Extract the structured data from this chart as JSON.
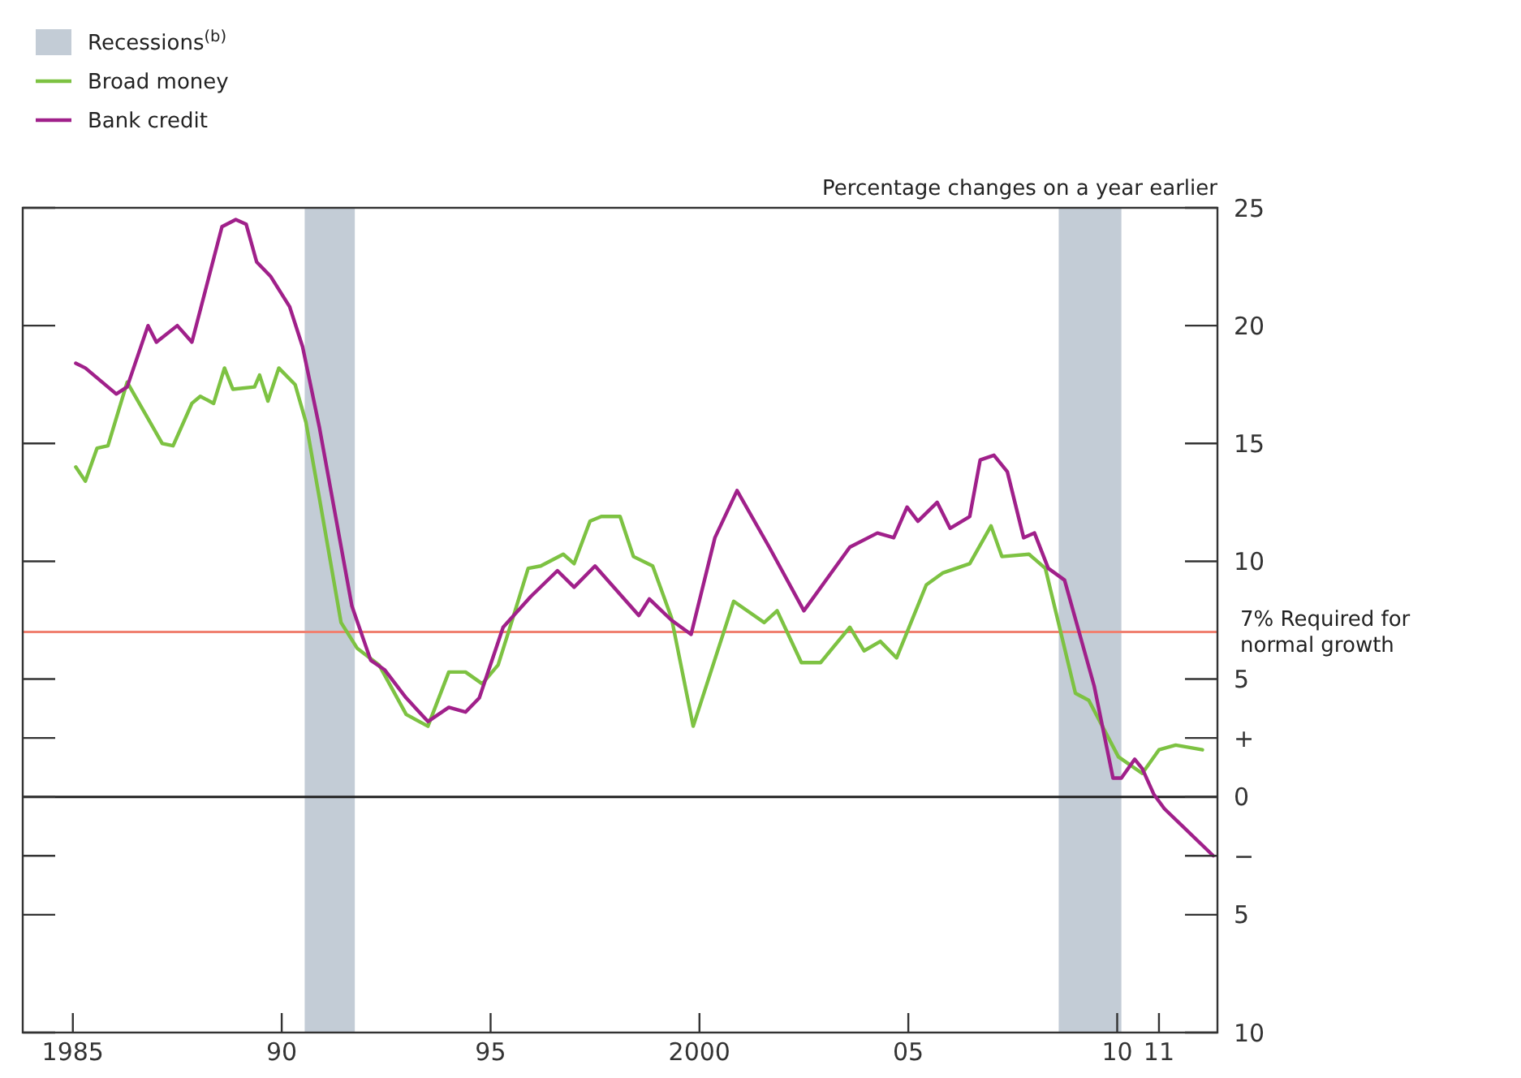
{
  "chart_data": {
    "type": "line",
    "ylabel": "Percentage changes on a year earlier",
    "xlim": [
      1983.8,
      2012.4
    ],
    "ylim": [
      -10,
      25
    ],
    "xticks": [
      1985,
      {
        "value": 1990,
        "label": "90"
      },
      {
        "value": 1995,
        "label": "95"
      },
      2000,
      {
        "value": 2005,
        "label": "05"
      },
      {
        "value": 2010,
        "label": "10"
      },
      {
        "value": 2011,
        "label": "11"
      }
    ],
    "yticks": [
      25,
      20,
      15,
      10,
      5,
      {
        "value": 2.5,
        "label": "+"
      },
      0,
      {
        "value": -2.5,
        "label": "−"
      },
      {
        "value": -5,
        "label": "5"
      },
      {
        "value": -10,
        "label": "10"
      }
    ],
    "grid": false,
    "legend": "top left",
    "line_style": "solid",
    "marker": "none",
    "series": [
      {
        "name": "Broad money",
        "color": "#7dc242",
        "x": [
          1985.07,
          1985.3,
          1985.58,
          1985.84,
          1986.3,
          1987.14,
          1987.4,
          1987.85,
          1988.05,
          1988.37,
          1988.63,
          1988.83,
          1989.35,
          1989.47,
          1989.67,
          1989.93,
          1990.32,
          1990.58,
          1990.9,
          1991.42,
          1991.81,
          1992.33,
          1992.98,
          1993.5,
          1994.0,
          1994.4,
          1994.8,
          1995.18,
          1995.5,
          1995.9,
          1996.2,
          1996.74,
          1997.0,
          1997.38,
          1997.65,
          1998.1,
          1998.42,
          1998.88,
          1999.33,
          1999.85,
          2000.82,
          2001.55,
          2001.86,
          2002.44,
          2002.9,
          2003.6,
          2003.94,
          2004.33,
          2004.72,
          2005.43,
          2005.82,
          2006.47,
          2006.98,
          2007.24,
          2007.89,
          2008.28,
          2009.0,
          2009.32,
          2010.03,
          2010.6,
          2011.0,
          2011.4,
          2012.04
        ],
        "values": [
          14.0,
          13.4,
          14.8,
          14.9,
          17.6,
          15.0,
          14.9,
          16.7,
          17.0,
          16.7,
          18.2,
          17.3,
          17.4,
          17.9,
          16.8,
          18.2,
          17.5,
          15.9,
          12.7,
          7.4,
          6.3,
          5.6,
          3.5,
          3.0,
          5.3,
          5.3,
          4.8,
          5.6,
          7.4,
          9.7,
          9.8,
          10.3,
          9.9,
          11.7,
          11.9,
          11.9,
          10.2,
          9.8,
          7.6,
          3.0,
          8.3,
          7.4,
          7.9,
          5.7,
          5.7,
          7.2,
          6.2,
          6.6,
          5.9,
          9.0,
          9.5,
          9.9,
          11.5,
          10.2,
          10.3,
          9.7,
          4.4,
          4.1,
          1.7,
          1.0,
          2.0,
          2.2,
          2.0
        ]
      },
      {
        "name": "Bank credit",
        "color": "#a0208a",
        "x": [
          1985.07,
          1985.3,
          1986.04,
          1986.3,
          1986.8,
          1987.0,
          1987.5,
          1987.85,
          1988.57,
          1988.9,
          1989.15,
          1989.4,
          1989.73,
          1990.19,
          1990.5,
          1990.9,
          1991.3,
          1991.68,
          1992.13,
          1992.46,
          1992.98,
          1993.5,
          1994.0,
          1994.4,
          1994.73,
          1995.3,
          1995.96,
          1996.6,
          1997.0,
          1997.5,
          1997.9,
          1998.55,
          1998.8,
          1999.33,
          1999.8,
          2000.37,
          2000.9,
          2001.67,
          2002.5,
          2003.6,
          2004.26,
          2004.65,
          2004.97,
          2005.23,
          2005.69,
          2006.0,
          2006.47,
          2006.72,
          2007.05,
          2007.37,
          2007.76,
          2008.02,
          2008.35,
          2008.74,
          2009.45,
          2009.9,
          2010.1,
          2010.42,
          2010.6,
          2010.88,
          2011.13,
          2012.3
        ],
        "values": [
          18.4,
          18.2,
          17.1,
          17.4,
          20.0,
          19.3,
          20.0,
          19.3,
          24.2,
          24.5,
          24.3,
          22.7,
          22.1,
          20.8,
          19.1,
          15.7,
          11.8,
          8.1,
          5.8,
          5.4,
          4.2,
          3.2,
          3.8,
          3.6,
          4.2,
          7.2,
          8.5,
          9.6,
          8.9,
          9.8,
          9.0,
          7.7,
          8.4,
          7.5,
          6.9,
          11.0,
          13.0,
          10.6,
          7.9,
          10.6,
          11.2,
          11.0,
          12.3,
          11.7,
          12.5,
          11.4,
          11.9,
          14.3,
          14.5,
          13.8,
          11.0,
          11.2,
          9.7,
          9.2,
          4.7,
          0.8,
          0.8,
          1.6,
          1.2,
          0.1,
          -0.5,
          -2.5
        ]
      }
    ],
    "bands": [
      {
        "axis": "x",
        "from": 1990.55,
        "to": 1991.75,
        "label": "Recessions$^{(b)}$",
        "color": "#c3ccd6"
      },
      {
        "axis": "x",
        "from": 2008.6,
        "to": 2010.1,
        "color": "#c3ccd6"
      }
    ],
    "ref_lines": [
      {
        "axis": "y",
        "value": 0,
        "color": "#222222",
        "line_style": "solid"
      },
      {
        "axis": "y",
        "value": 7,
        "label": "7% Required for normal growth",
        "color": "#f08070",
        "line_style": "solid"
      }
    ]
  }
}
